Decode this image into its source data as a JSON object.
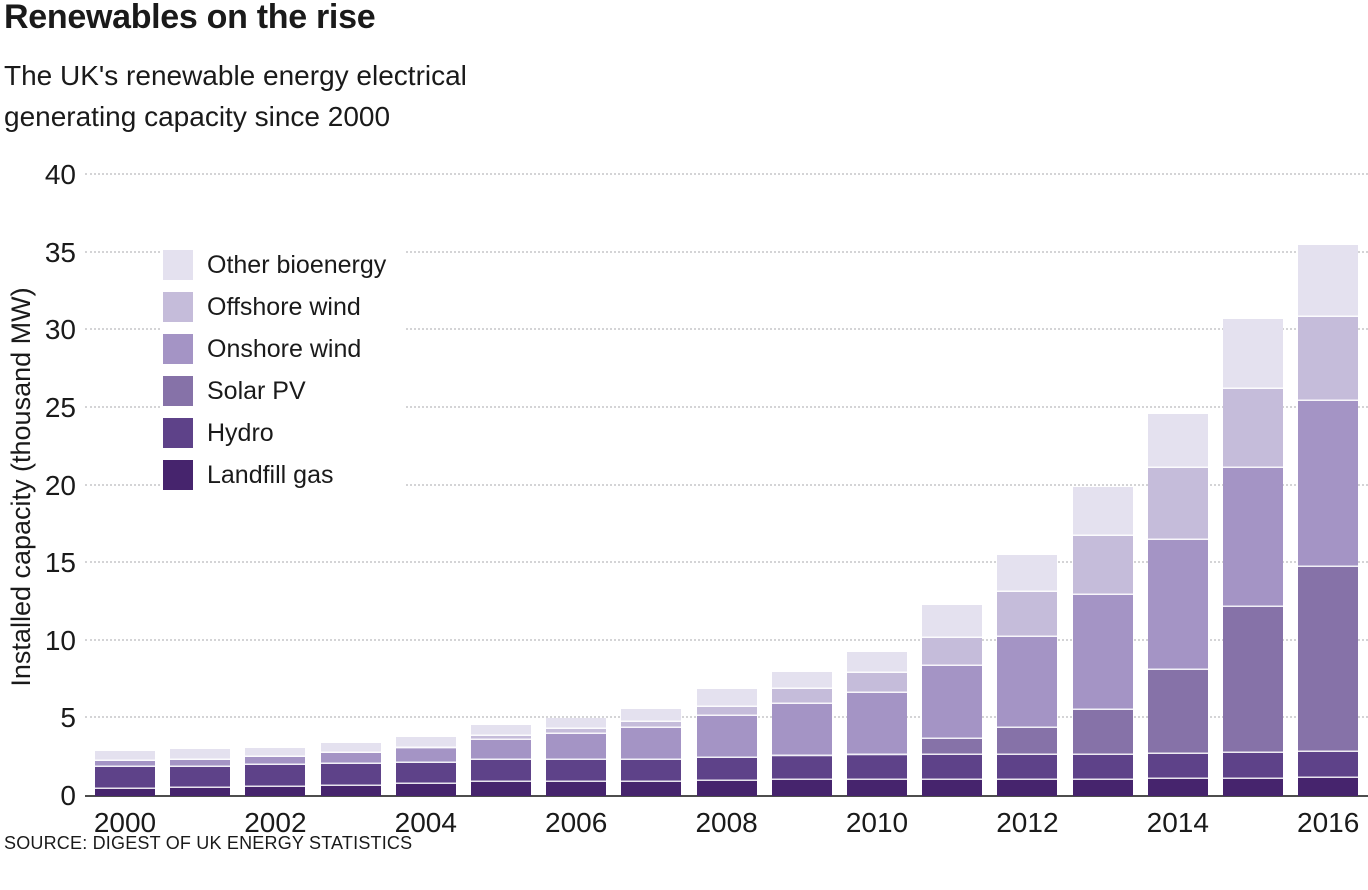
{
  "header": {
    "title": "Renewables on the rise",
    "subtitle_lines": [
      "The UK's renewable energy electrical",
      "generating capacity since 2000"
    ]
  },
  "source": "SOURCE: DIGEST OF UK ENERGY STATISTICS",
  "colors": {
    "axis": "#4d4d4d",
    "grid": "#d4d4d6",
    "text": "#1a1a1a",
    "background": "#ffffff",
    "segment_separator": "rgba(255,255,255,0.85)"
  },
  "chart_data": {
    "type": "bar",
    "stacked": true,
    "title": "Renewables on the rise",
    "subtitle": "The UK's renewable energy electrical generating capacity since 2000",
    "xlabel": "",
    "ylabel": "Installed capacity (thousand MW)",
    "ylim": [
      0,
      40
    ],
    "yticks": [
      0,
      5,
      10,
      15,
      20,
      25,
      30,
      35,
      40
    ],
    "grid": "horizontal-dotted",
    "legend_position": "upper-left-inside",
    "categories": [
      2000,
      2001,
      2002,
      2003,
      2004,
      2005,
      2006,
      2007,
      2008,
      2009,
      2010,
      2011,
      2012,
      2013,
      2014,
      2015,
      2016
    ],
    "xtick_labels_shown": [
      2000,
      2002,
      2004,
      2006,
      2008,
      2010,
      2012,
      2014,
      2016
    ],
    "series": [
      {
        "name": "Landfill gas",
        "color": "#46246d",
        "values": [
          0.45,
          0.5,
          0.6,
          0.65,
          0.75,
          0.9,
          0.9,
          0.9,
          0.95,
          1.0,
          1.0,
          1.05,
          1.05,
          1.05,
          1.1,
          1.1,
          1.15
        ]
      },
      {
        "name": "Hydro",
        "color": "#5e4289",
        "values": [
          1.4,
          1.4,
          1.4,
          1.4,
          1.4,
          1.4,
          1.45,
          1.45,
          1.5,
          1.5,
          1.55,
          1.6,
          1.6,
          1.6,
          1.6,
          1.65,
          1.7
        ]
      },
      {
        "name": "Solar PV",
        "color": "#8672a8",
        "values": [
          0,
          0,
          0,
          0,
          0,
          0,
          0,
          0,
          0,
          0.05,
          0.1,
          1.0,
          1.7,
          2.9,
          5.4,
          9.4,
          11.9
        ]
      },
      {
        "name": "Onshore wind",
        "color": "#a494c5",
        "values": [
          0.4,
          0.45,
          0.5,
          0.7,
          0.85,
          1.3,
          1.65,
          2.05,
          2.7,
          3.4,
          4.0,
          4.7,
          5.9,
          7.4,
          8.4,
          9.0,
          10.7
        ]
      },
      {
        "name": "Offshore wind",
        "color": "#c5bcda",
        "values": [
          0,
          0,
          0,
          0.05,
          0.1,
          0.25,
          0.3,
          0.4,
          0.6,
          0.95,
          1.3,
          1.8,
          2.9,
          3.8,
          4.6,
          5.1,
          5.4
        ]
      },
      {
        "name": "Other bioenergy",
        "color": "#e4e1ef",
        "values": [
          0.65,
          0.65,
          0.6,
          0.6,
          0.7,
          0.75,
          0.7,
          0.8,
          1.15,
          1.1,
          1.35,
          2.15,
          2.35,
          3.15,
          3.5,
          4.45,
          4.65
        ]
      }
    ],
    "totals": [
      2.9,
      3.0,
      3.1,
      3.4,
      3.8,
      4.6,
      5.0,
      5.6,
      6.9,
      8.0,
      9.3,
      12.3,
      15.5,
      19.9,
      24.6,
      30.7,
      35.5
    ],
    "legend_order_top_to_bottom": [
      "Other bioenergy",
      "Offshore wind",
      "Onshore wind",
      "Solar PV",
      "Hydro",
      "Landfill gas"
    ]
  }
}
